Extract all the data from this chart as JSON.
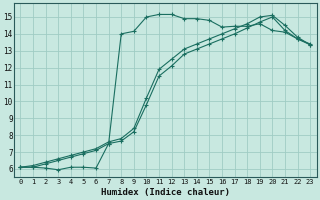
{
  "xlabel": "Humidex (Indice chaleur)",
  "xlim": [
    -0.5,
    23.5
  ],
  "ylim": [
    5.5,
    15.8
  ],
  "xticks": [
    0,
    1,
    2,
    3,
    4,
    5,
    6,
    7,
    8,
    9,
    10,
    11,
    12,
    13,
    14,
    15,
    16,
    17,
    18,
    19,
    20,
    21,
    22,
    23
  ],
  "yticks": [
    6,
    7,
    8,
    9,
    10,
    11,
    12,
    13,
    14,
    15
  ],
  "background_color": "#c8e8e0",
  "grid_color": "#a0ccc4",
  "line_color": "#1a6e60",
  "line1_x": [
    0,
    1,
    2,
    3,
    4,
    5,
    6,
    7,
    8,
    9,
    10,
    11,
    12,
    13,
    14,
    15,
    16,
    17,
    18,
    19,
    20,
    21,
    22,
    23
  ],
  "line1_y": [
    6.1,
    6.1,
    6.05,
    5.95,
    6.1,
    6.1,
    6.05,
    7.5,
    14.0,
    14.15,
    15.0,
    15.15,
    15.15,
    14.9,
    14.9,
    14.8,
    14.4,
    14.45,
    14.45,
    14.6,
    14.2,
    14.1,
    13.7,
    13.4
  ],
  "line2_x": [
    0,
    1,
    2,
    3,
    4,
    5,
    6,
    7,
    8,
    9,
    10,
    11,
    12,
    13,
    14,
    15,
    16,
    17,
    18,
    19,
    20,
    21,
    22,
    23
  ],
  "line2_y": [
    6.1,
    6.1,
    6.3,
    6.5,
    6.7,
    6.9,
    7.1,
    7.5,
    7.65,
    8.2,
    9.8,
    11.5,
    12.1,
    12.8,
    13.1,
    13.4,
    13.7,
    14.0,
    14.35,
    14.7,
    15.0,
    14.2,
    13.7,
    13.35
  ],
  "line3_x": [
    0,
    1,
    2,
    3,
    4,
    5,
    6,
    7,
    8,
    9,
    10,
    11,
    12,
    13,
    14,
    15,
    16,
    17,
    18,
    19,
    20,
    21,
    22,
    23
  ],
  "line3_y": [
    6.1,
    6.2,
    6.4,
    6.6,
    6.8,
    7.0,
    7.2,
    7.6,
    7.8,
    8.4,
    10.2,
    11.9,
    12.5,
    13.1,
    13.4,
    13.7,
    14.0,
    14.3,
    14.6,
    15.0,
    15.1,
    14.5,
    13.8,
    13.35
  ]
}
